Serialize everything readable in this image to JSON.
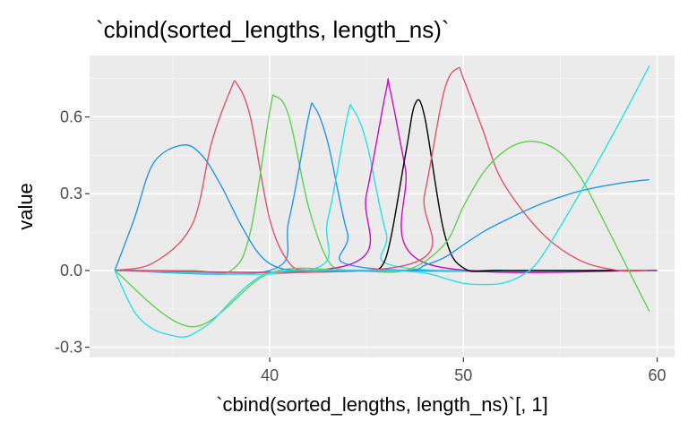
{
  "chart_data": {
    "type": "line",
    "title": "`cbind(sorted_lengths, length_ns)`",
    "xlabel": "`cbind(sorted_lengths, length_ns)`[, 1]",
    "ylabel": "value",
    "xlim": [
      30.7,
      60.9
    ],
    "ylim": [
      -0.34,
      0.84
    ],
    "x_ticks": [
      40,
      50,
      60
    ],
    "x_tick_labels": [
      "40",
      "50",
      "60"
    ],
    "y_ticks": [
      -0.3,
      0.0,
      0.3,
      0.6
    ],
    "y_tick_labels": [
      "-0.3",
      "0.0",
      "0.3",
      "0.6"
    ],
    "grid": true,
    "background": "#ebebeb",
    "series": [
      {
        "color": "#df536b",
        "x": [
          32,
          34,
          36,
          37,
          38,
          38.3,
          39,
          40,
          41,
          42,
          44,
          60
        ],
        "y": [
          0,
          0.03,
          0.18,
          0.5,
          0.71,
          0.73,
          0.6,
          0.2,
          0.03,
          0,
          0,
          0
        ]
      },
      {
        "color": "#61d04f",
        "x": [
          32,
          36,
          38,
          39,
          40,
          40.3,
          41,
          42,
          43,
          44,
          46,
          60
        ],
        "y": [
          0,
          0,
          0,
          0.15,
          0.62,
          0.68,
          0.6,
          0.25,
          0.04,
          0,
          0,
          0
        ]
      },
      {
        "color": "#2297e6",
        "x": [
          32,
          40,
          41,
          42,
          42.3,
          43,
          44,
          45,
          60
        ],
        "y": [
          0,
          0,
          0.2,
          0.6,
          0.64,
          0.5,
          0.15,
          0.01,
          0
        ]
      },
      {
        "color": "#28e2e5",
        "x": [
          32,
          42,
          43,
          44,
          44.3,
          45,
          46,
          47,
          60
        ],
        "y": [
          0,
          0,
          0.2,
          0.6,
          0.63,
          0.5,
          0.15,
          0.01,
          0
        ]
      },
      {
        "color": "#cd0bbc",
        "x": [
          32,
          44,
          45,
          46,
          46.2,
          47,
          48,
          60
        ],
        "y": [
          0,
          0.02,
          0.3,
          0.7,
          0.71,
          0.4,
          0.03,
          0
        ]
      },
      {
        "color": "#000000",
        "x": [
          45,
          46,
          47,
          47.5,
          48,
          49,
          50,
          52,
          58
        ],
        "y": [
          0,
          0.05,
          0.45,
          0.65,
          0.6,
          0.15,
          0.01,
          0,
          0
        ]
      },
      {
        "color": "#df536b",
        "x": [
          32,
          47,
          48,
          49,
          49.7,
          50,
          51,
          52,
          54,
          56,
          58,
          59.5
        ],
        "y": [
          0,
          0.02,
          0.3,
          0.7,
          0.79,
          0.75,
          0.55,
          0.35,
          0.15,
          0.04,
          0,
          0
        ]
      },
      {
        "color": "#61d04f",
        "x": [
          32,
          36,
          40,
          44,
          47,
          49,
          50,
          51,
          52,
          53,
          54,
          55,
          56,
          57,
          58,
          59,
          59.6
        ],
        "y": [
          0,
          -0.22,
          -0.01,
          0,
          0,
          0.1,
          0.25,
          0.38,
          0.46,
          0.5,
          0.5,
          0.46,
          0.37,
          0.23,
          0.08,
          -0.07,
          -0.16
        ]
      },
      {
        "color": "#2297e6",
        "x": [
          32,
          33,
          34,
          35.5,
          36.5,
          37.5,
          38.5,
          39.5,
          40.5,
          42,
          47,
          48,
          49,
          50,
          51,
          52,
          54,
          56,
          58,
          59.6
        ],
        "y": [
          0,
          0.2,
          0.42,
          0.49,
          0.45,
          0.33,
          0.18,
          0.06,
          0.01,
          0,
          0,
          0.02,
          0.05,
          0.1,
          0.15,
          0.19,
          0.26,
          0.31,
          0.34,
          0.355
        ]
      },
      {
        "color": "#28e2e5",
        "x": [
          32,
          33,
          34,
          35,
          35.5,
          36,
          37,
          38,
          39,
          40,
          42,
          46,
          48,
          49,
          50,
          51,
          52,
          53,
          54,
          56,
          58,
          59.6
        ],
        "y": [
          0,
          -0.16,
          -0.23,
          -0.255,
          -0.26,
          -0.25,
          -0.2,
          -0.12,
          -0.05,
          -0.01,
          0,
          0,
          -0.01,
          -0.03,
          -0.05,
          -0.055,
          -0.05,
          -0.02,
          0.05,
          0.3,
          0.57,
          0.8
        ]
      }
    ]
  }
}
